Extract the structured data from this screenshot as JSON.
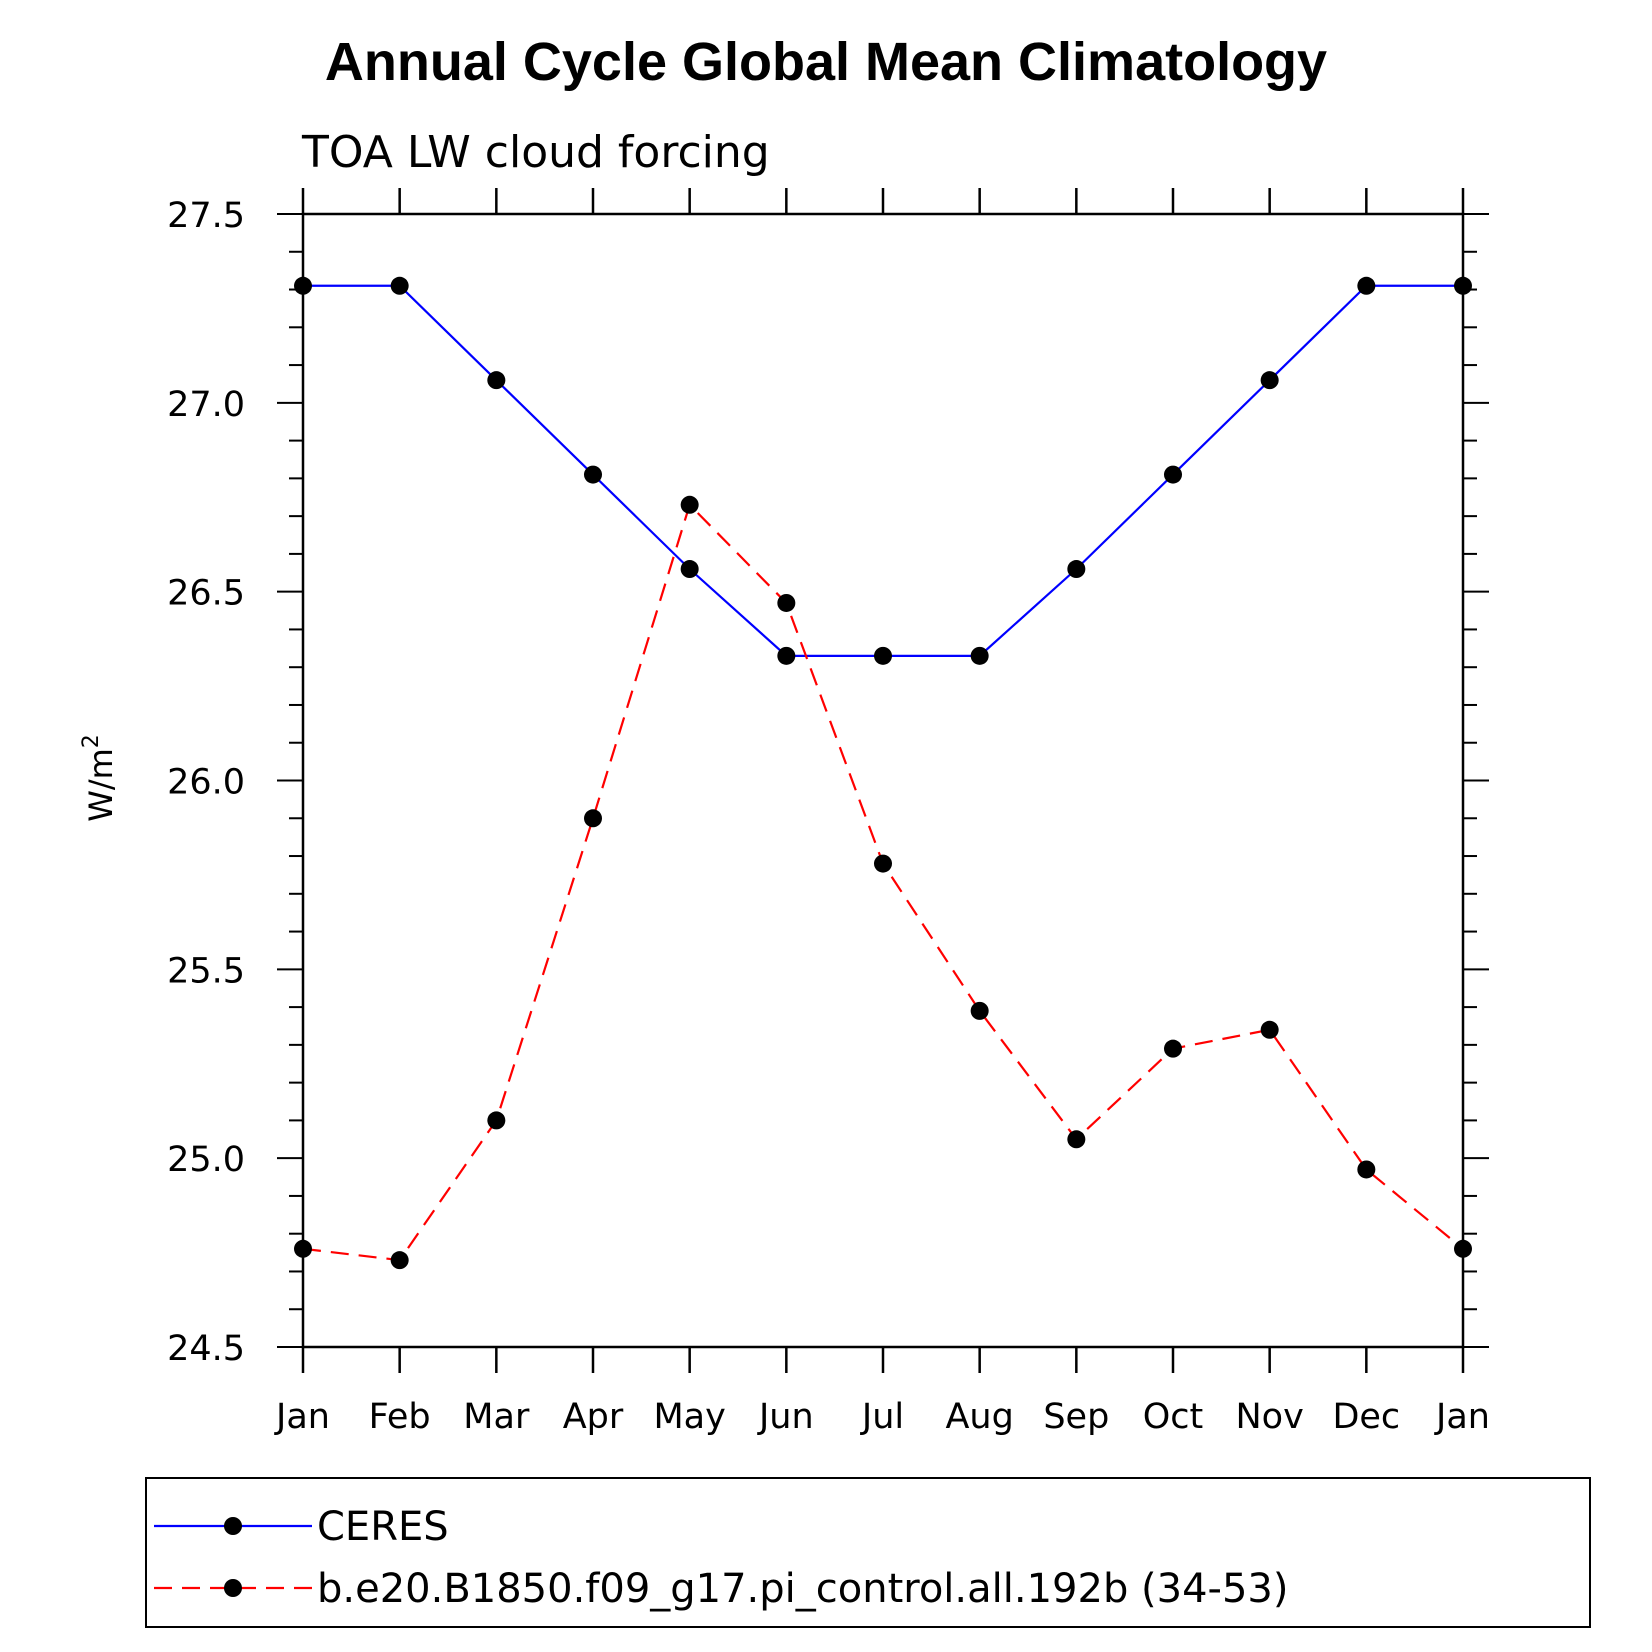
{
  "chart_data": {
    "type": "line",
    "title": "Annual Cycle Global Mean Climatology",
    "subtitle": "TOA LW cloud forcing",
    "ylabel": "W/m",
    "ylabel_superscript": "2",
    "xlabel": "",
    "categories": [
      "Jan",
      "Feb",
      "Mar",
      "Apr",
      "May",
      "Jun",
      "Jul",
      "Aug",
      "Sep",
      "Oct",
      "Nov",
      "Dec",
      "Jan"
    ],
    "ylim": [
      24.5,
      27.5
    ],
    "yticks": [
      "24.5",
      "25.0",
      "25.5",
      "26.0",
      "26.5",
      "27.0",
      "27.5"
    ],
    "grid": false,
    "series": [
      {
        "name": "CERES",
        "color": "#0000ff",
        "dash": "solid",
        "values": [
          27.31,
          27.31,
          27.06,
          26.81,
          26.56,
          26.33,
          26.33,
          26.33,
          26.56,
          26.81,
          27.06,
          27.31,
          27.31
        ]
      },
      {
        "name": "b.e20.B1850.f09_g17.pi_control.all.192b (34-53)",
        "color": "#ff0000",
        "dash": "dashed",
        "values": [
          24.76,
          24.73,
          25.1,
          25.9,
          26.73,
          26.47,
          25.78,
          25.39,
          25.05,
          25.29,
          25.34,
          24.97,
          24.76
        ]
      }
    ],
    "legend_position": "bottom"
  }
}
